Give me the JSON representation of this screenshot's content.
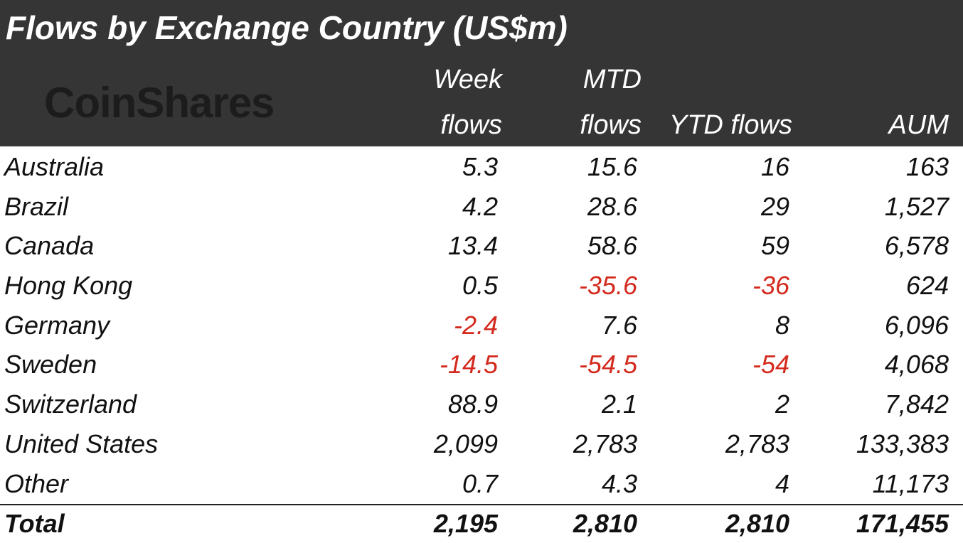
{
  "title": "Flows by Exchange Country (US$m)",
  "logo_text": "CoinShares",
  "columns": {
    "week_line1": "Week",
    "week_line2": "flows",
    "mtd_line1": "MTD",
    "mtd_line2": "flows",
    "ytd": "YTD flows",
    "aum": "AUM"
  },
  "rows": [
    {
      "country": "Australia",
      "week": "5.3",
      "mtd": "15.6",
      "ytd": "16",
      "aum": "163"
    },
    {
      "country": "Brazil",
      "week": "4.2",
      "mtd": "28.6",
      "ytd": "29",
      "aum": "1,527"
    },
    {
      "country": "Canada",
      "week": "13.4",
      "mtd": "58.6",
      "ytd": "59",
      "aum": "6,578"
    },
    {
      "country": "Hong Kong",
      "week": "0.5",
      "mtd": "-35.6",
      "ytd": "-36",
      "aum": "624"
    },
    {
      "country": "Germany",
      "week": "-2.4",
      "mtd": "7.6",
      "ytd": "8",
      "aum": "6,096"
    },
    {
      "country": "Sweden",
      "week": "-14.5",
      "mtd": "-54.5",
      "ytd": "-54",
      "aum": "4,068"
    },
    {
      "country": "Switzerland",
      "week": "88.9",
      "mtd": "2.1",
      "ytd": "2",
      "aum": "7,842"
    },
    {
      "country": "United States",
      "week": "2,099",
      "mtd": "2,783",
      "ytd": "2,783",
      "aum": "133,383"
    },
    {
      "country": "Other",
      "week": "0.7",
      "mtd": "4.3",
      "ytd": "4",
      "aum": "11,173"
    }
  ],
  "total": {
    "label": "Total",
    "week": "2,195",
    "mtd": "2,810",
    "ytd": "2,810",
    "aum": "171,455"
  },
  "colors": {
    "header_bg": "#353535",
    "header_text": "#ffffff",
    "negative": "#d42a1e",
    "text": "#111111"
  }
}
